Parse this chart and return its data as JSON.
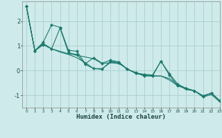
{
  "title": "",
  "xlabel": "Humidex (Indice chaleur)",
  "ylabel": "",
  "background_color": "#ceeaea",
  "grid_color": "#aacece",
  "line_color": "#1a7a6e",
  "xlim": [
    -0.5,
    23
  ],
  "ylim": [
    -1.5,
    2.8
  ],
  "yticks": [
    -1,
    0,
    1,
    2
  ],
  "xticks": [
    0,
    1,
    2,
    3,
    4,
    5,
    6,
    7,
    8,
    9,
    10,
    11,
    12,
    13,
    14,
    15,
    16,
    17,
    18,
    19,
    20,
    21,
    22,
    23
  ],
  "lines": [
    [
      2.6,
      0.8,
      1.15,
      1.85,
      1.75,
      0.82,
      0.78,
      0.28,
      0.52,
      0.3,
      0.42,
      0.35,
      0.05,
      -0.1,
      -0.15,
      -0.18,
      0.38,
      -0.12,
      -0.55,
      -0.72,
      -0.82,
      -1.05,
      -0.9,
      -1.22
    ],
    [
      2.6,
      0.8,
      1.05,
      0.88,
      0.78,
      0.68,
      0.62,
      0.55,
      0.48,
      0.28,
      0.32,
      0.28,
      0.08,
      -0.12,
      -0.18,
      -0.22,
      -0.22,
      -0.32,
      -0.57,
      -0.77,
      -0.82,
      -1.07,
      -0.97,
      -1.27
    ],
    [
      2.6,
      0.8,
      1.1,
      0.88,
      0.75,
      0.65,
      0.52,
      0.32,
      0.08,
      0.08,
      0.32,
      0.32,
      0.05,
      -0.08,
      -0.18,
      -0.22,
      -0.22,
      -0.38,
      -0.62,
      -0.72,
      -0.82,
      -1.02,
      -0.92,
      -1.22
    ],
    [
      2.6,
      0.8,
      1.05,
      0.88,
      1.72,
      0.72,
      0.65,
      0.25,
      0.08,
      0.05,
      0.38,
      0.32,
      0.05,
      -0.08,
      -0.22,
      -0.22,
      0.38,
      -0.18,
      -0.62,
      -0.72,
      -0.82,
      -1.02,
      -0.92,
      -1.22
    ]
  ]
}
